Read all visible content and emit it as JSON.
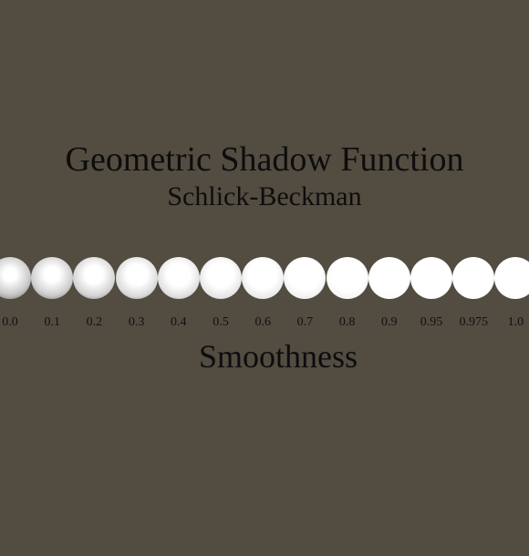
{
  "title": "Geometric Shadow Function",
  "subtitle": "Schlick-Beckman",
  "axis_label": "Smoothness",
  "background_color": "#524c41",
  "smoothness_values": [
    "0.0",
    "0.1",
    "0.2",
    "0.3",
    "0.4",
    "0.5",
    "0.6",
    "0.7",
    "0.8",
    "0.9",
    "0.95",
    "0.975",
    "1.0"
  ]
}
